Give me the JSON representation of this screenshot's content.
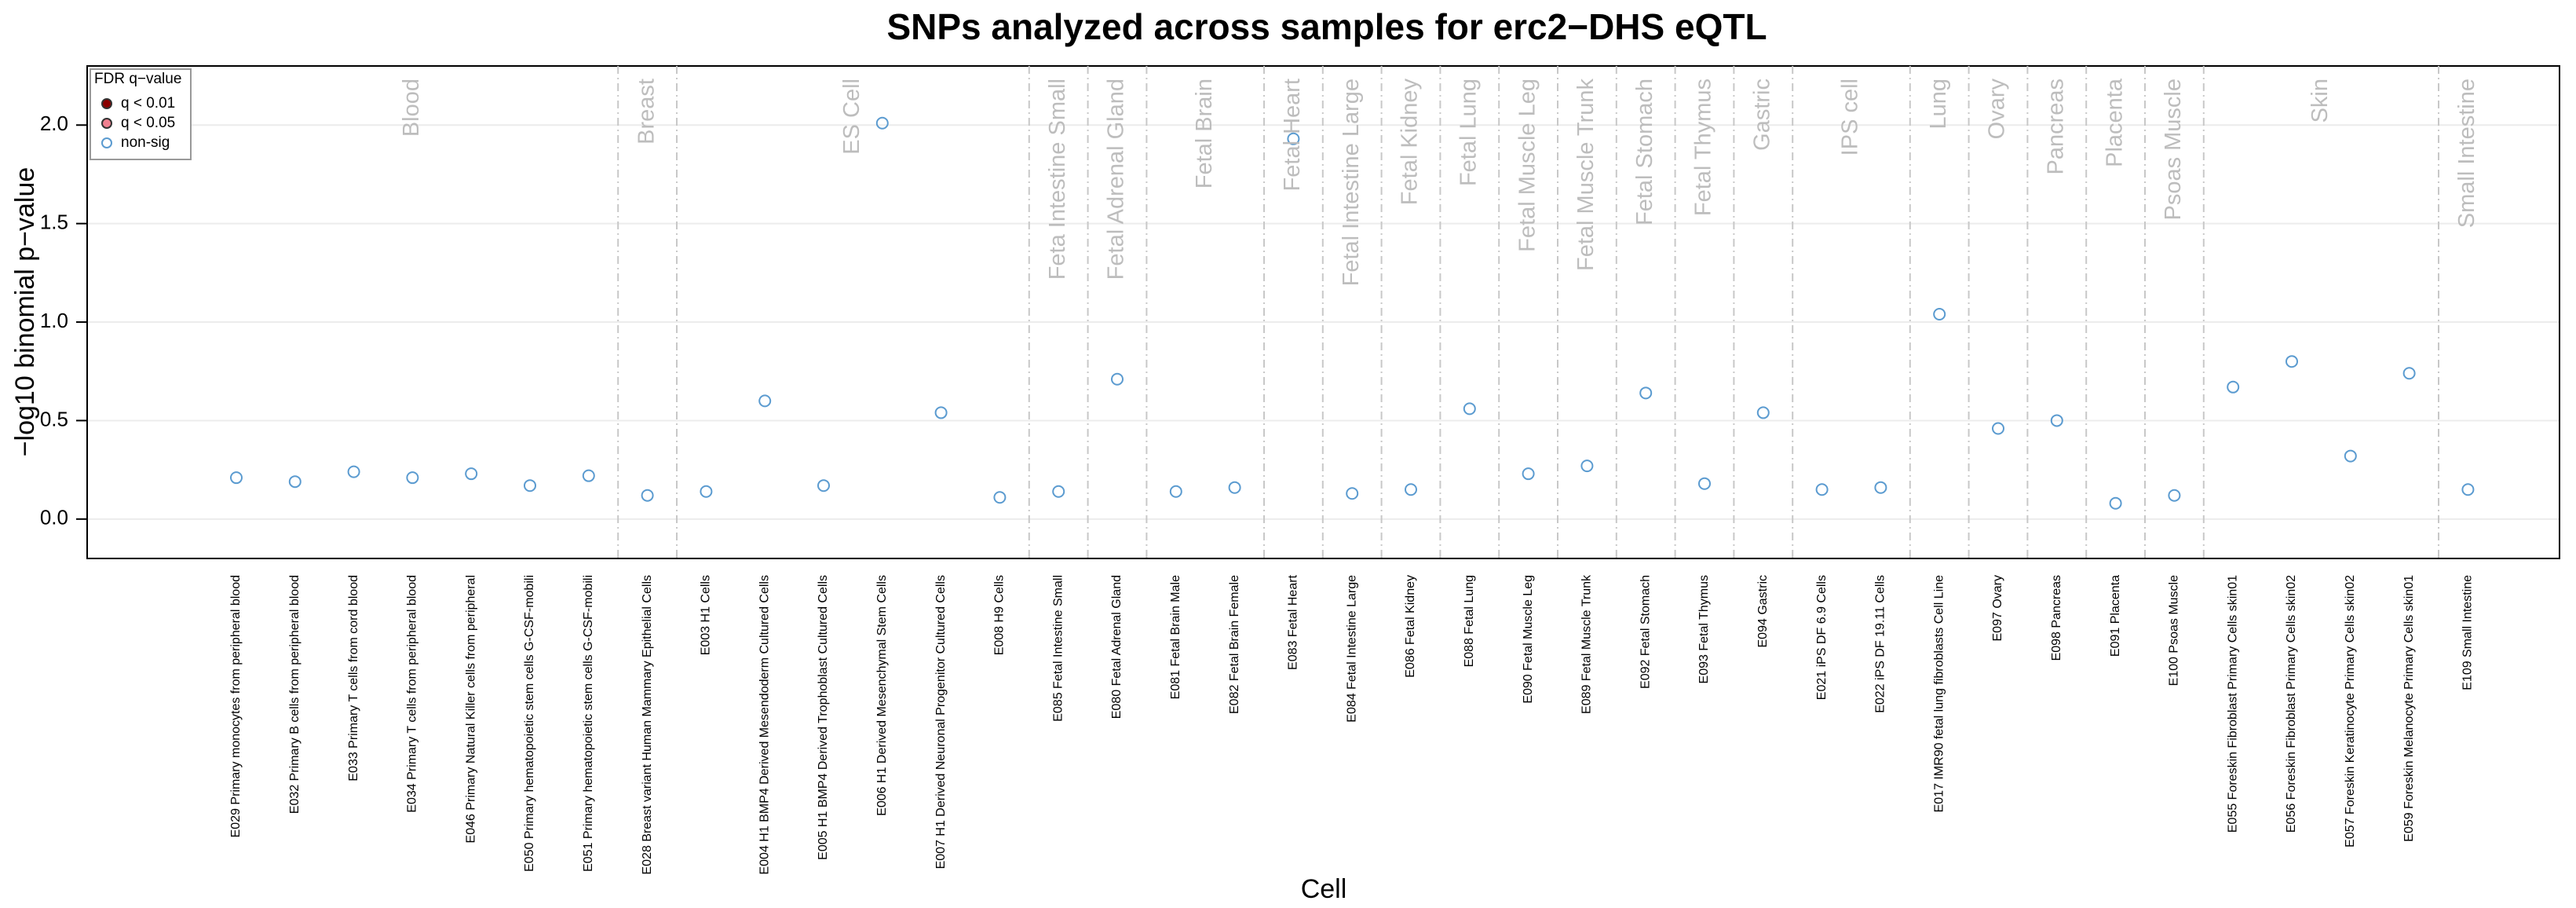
{
  "chart_data": {
    "type": "scatter",
    "title": "SNPs analyzed across samples for erc2−DHS eQTL",
    "x_label": "Cell",
    "y_label": "−log10 binomial p−value",
    "ylim": [
      -0.2,
      2.3
    ],
    "yticks": [
      {
        "value": 0,
        "label": "0.0"
      },
      0.5,
      {
        "value": 1,
        "label": "1.0"
      },
      1.5,
      {
        "value": 2,
        "label": "2.0"
      }
    ],
    "grid": true,
    "marker_color": "#5b9bd0",
    "legend": {
      "title": "FDR q−value",
      "position": "top-left",
      "items": [
        {
          "name": "q < 0.01",
          "color": "#8b0000",
          "filled": true
        },
        {
          "name": "q < 0.05",
          "color": "#f08090",
          "filled": true
        },
        {
          "name": "non-sig",
          "color": "#5b9bd0",
          "filled": false
        }
      ]
    },
    "groups": [
      {
        "name": "Blood",
        "categories": [
          "E029 Primary monocytes from peripheral blood",
          "E032 Primary B cells from peripheral blood",
          "E033 Primary T cells from cord blood",
          "E034 Primary T cells from peripheral blood",
          "E046 Primary Natural Killer cells from peripheral",
          "E050 Primary hematopoietic stem cells G-CSF-mobili",
          "E051 Primary hematopoietic stem cells G-CSF-mobili"
        ],
        "values": [
          0.21,
          0.19,
          0.24,
          0.21,
          0.23,
          0.17,
          0.22
        ]
      },
      {
        "name": "Breast",
        "categories": [
          "E028 Breast variant Human Mammary Epithelial Cells"
        ],
        "values": [
          0.12
        ]
      },
      {
        "name": "ES Cell",
        "categories": [
          "E003 H1 Cells",
          "E004 H1 BMP4 Derived Mesendoderm Cultured Cells",
          "E005 H1 BMP4 Derived Trophoblast Cultured Cells",
          "E006 H1 Derived Mesenchymal Stem Cells",
          "E007 H1 Derived Neuronal Progenitor Cultured Cells",
          "E008 H9 Cells"
        ],
        "values": [
          0.14,
          0.6,
          0.17,
          2.01,
          0.54,
          0.11
        ]
      },
      {
        "name": "Feta Intestine Small",
        "categories": [
          "E085 Fetal Intestine Small"
        ],
        "values": [
          0.14
        ]
      },
      {
        "name": "Fetal Adrenal Gland",
        "categories": [
          "E080 Fetal Adrenal Gland"
        ],
        "values": [
          0.71
        ]
      },
      {
        "name": "Fetal Brain",
        "categories": [
          "E081 Fetal Brain Male",
          "E082 Fetal Brain Female"
        ],
        "values": [
          0.14,
          0.16
        ]
      },
      {
        "name": "Fetal Heart",
        "categories": [
          "E083 Fetal Heart"
        ],
        "values": [
          1.93
        ]
      },
      {
        "name": "Fetal Intestine Large",
        "categories": [
          "E084 Fetal Intestine Large"
        ],
        "values": [
          0.13
        ]
      },
      {
        "name": "Fetal Kidney",
        "categories": [
          "E086 Fetal Kidney"
        ],
        "values": [
          0.15
        ]
      },
      {
        "name": "Fetal Lung",
        "categories": [
          "E088 Fetal Lung"
        ],
        "values": [
          0.56
        ]
      },
      {
        "name": "Fetal Muscle Leg",
        "categories": [
          "E090 Fetal Muscle Leg"
        ],
        "values": [
          0.23
        ]
      },
      {
        "name": "Fetal Muscle Trunk",
        "categories": [
          "E089 Fetal Muscle Trunk"
        ],
        "values": [
          0.27
        ]
      },
      {
        "name": "Fetal Stomach",
        "categories": [
          "E092 Fetal Stomach"
        ],
        "values": [
          0.64
        ]
      },
      {
        "name": "Fetal Thymus",
        "categories": [
          "E093 Fetal Thymus"
        ],
        "values": [
          0.18
        ]
      },
      {
        "name": "Gastric",
        "categories": [
          "E094 Gastric"
        ],
        "values": [
          0.54
        ]
      },
      {
        "name": "IPS cell",
        "categories": [
          "E021 iPS DF 6.9 Cells",
          "E022 iPS DF 19.11 Cells"
        ],
        "values": [
          0.15,
          0.16
        ]
      },
      {
        "name": "Lung",
        "categories": [
          "E017 IMR90 fetal lung fibroblasts Cell Line"
        ],
        "values": [
          1.04
        ]
      },
      {
        "name": "Ovary",
        "categories": [
          "E097 Ovary"
        ],
        "values": [
          0.46
        ]
      },
      {
        "name": "Pancreas",
        "categories": [
          "E098 Pancreas"
        ],
        "values": [
          0.5
        ]
      },
      {
        "name": "Placenta",
        "categories": [
          "E091 Placenta"
        ],
        "values": [
          0.08
        ]
      },
      {
        "name": "Psoas Muscle",
        "categories": [
          "E100 Psoas Muscle"
        ],
        "values": [
          0.12
        ]
      },
      {
        "name": "Skin",
        "categories": [
          "E055 Foreskin Fibroblast Primary Cells skin01",
          "E056 Foreskin Fibroblast Primary Cells skin02",
          "E057 Foreskin Keratinocyte Primary Cells skin02",
          "E059 Foreskin Melanocyte Primary Cells skin01"
        ],
        "values": [
          0.67,
          0.8,
          0.32,
          0.74
        ]
      },
      {
        "name": "Small Intestine",
        "categories": [
          "E109 Small Intestine"
        ],
        "values": [
          0.15
        ]
      }
    ]
  }
}
